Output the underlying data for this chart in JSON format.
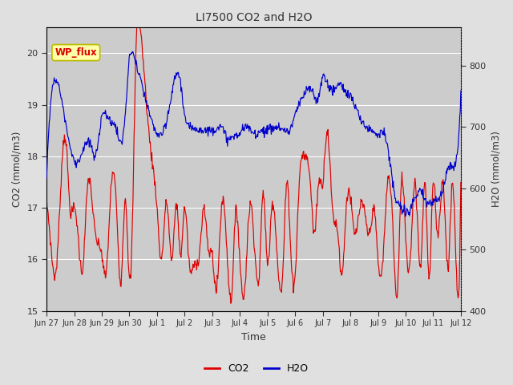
{
  "title": "LI7500 CO2 and H2O",
  "xlabel": "Time",
  "ylabel_left": "CO2 (mmol/m3)",
  "ylabel_right": "H2O (mmol/m3)",
  "co2_ylim": [
    15.0,
    20.5
  ],
  "h2o_ylim": [
    400,
    862.5
  ],
  "co2_color": "#dd0000",
  "h2o_color": "#0000cc",
  "fig_bg_color": "#e0e0e0",
  "plot_bg_color": "#cccccc",
  "grid_color": "#ffffff",
  "annotation_text": "WP_flux",
  "annotation_bg": "#ffffaa",
  "annotation_border": "#bbbb00",
  "tick_label_color": "#333333",
  "title_color": "#333333",
  "x_tick_labels": [
    "Jun 27",
    "Jun 28",
    "Jun 29",
    "Jun 30",
    "Jul 1",
    "Jul 2",
    "Jul 3",
    "Jul 4",
    "Jul 5",
    "Jul 6",
    "Jul 7",
    "Jul 8",
    "Jul 9",
    "Jul 10",
    "Jul 11",
    "Jul 12"
  ],
  "legend_labels": [
    "CO2",
    "H2O"
  ],
  "figsize": [
    6.4,
    4.8
  ],
  "dpi": 100
}
